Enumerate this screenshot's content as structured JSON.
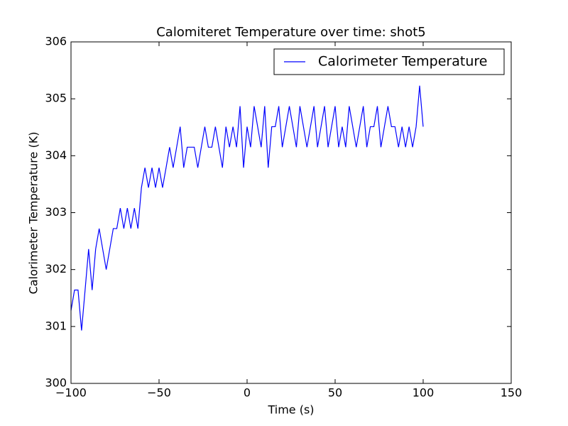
{
  "chart_data": {
    "type": "line",
    "title": "Calomiteret Temperature over time: shot5",
    "xlabel": "Time (s)",
    "ylabel": "Calorimeter Temperature (K)",
    "x": [
      -100,
      -98,
      -96,
      -94,
      -92,
      -90,
      -88,
      -86,
      -84,
      -82,
      -80,
      -78,
      -76,
      -74,
      -72,
      -70,
      -68,
      -66,
      -64,
      -62,
      -60,
      -58,
      -56,
      -54,
      -52,
      -50,
      -48,
      -46,
      -44,
      -42,
      -40,
      -38,
      -36,
      -34,
      -32,
      -30,
      -28,
      -26,
      -24,
      -22,
      -20,
      -18,
      -16,
      -14,
      -12,
      -10,
      -8,
      -6,
      -4,
      -2,
      0,
      2,
      4,
      6,
      8,
      10,
      12,
      14,
      16,
      18,
      20,
      22,
      24,
      26,
      28,
      30,
      32,
      34,
      36,
      38,
      40,
      42,
      44,
      46,
      48,
      50,
      52,
      54,
      56,
      58,
      60,
      62,
      64,
      66,
      68,
      70,
      72,
      74,
      76,
      78,
      80,
      82,
      84,
      86,
      88,
      90,
      92,
      94,
      96,
      98,
      100
    ],
    "series": [
      {
        "name": "Calorimeter Temperature",
        "color": "#0000ff",
        "values": [
          301.28,
          301.64,
          301.64,
          300.93,
          301.64,
          302.36,
          301.64,
          302.36,
          302.72,
          302.36,
          302.0,
          302.36,
          302.72,
          302.72,
          303.08,
          302.72,
          303.08,
          302.72,
          303.08,
          302.72,
          303.44,
          303.79,
          303.44,
          303.79,
          303.44,
          303.79,
          303.44,
          303.79,
          304.15,
          303.79,
          304.15,
          304.51,
          303.79,
          304.15,
          304.15,
          304.15,
          303.79,
          304.15,
          304.51,
          304.15,
          304.15,
          304.51,
          304.15,
          303.79,
          304.51,
          304.15,
          304.51,
          304.15,
          304.87,
          303.79,
          304.51,
          304.15,
          304.87,
          304.51,
          304.15,
          304.87,
          303.79,
          304.51,
          304.51,
          304.87,
          304.15,
          304.51,
          304.87,
          304.51,
          304.15,
          304.87,
          304.51,
          304.15,
          304.51,
          304.87,
          304.15,
          304.51,
          304.87,
          304.15,
          304.51,
          304.87,
          304.15,
          304.51,
          304.15,
          304.87,
          304.51,
          304.15,
          304.51,
          304.87,
          304.15,
          304.51,
          304.51,
          304.87,
          304.15,
          304.51,
          304.87,
          304.51,
          304.51,
          304.15,
          304.51,
          304.15,
          304.51,
          304.15,
          304.51,
          305.23,
          304.51
        ]
      }
    ],
    "xlim": [
      -100,
      150
    ],
    "xticks": [
      {
        "value": -100,
        "label": "−100"
      },
      {
        "value": -50,
        "label": "−50"
      },
      0,
      50,
      100,
      150
    ],
    "ylim": [
      300,
      306
    ],
    "yticks": [
      300,
      301,
      302,
      303,
      304,
      305,
      306
    ],
    "legend": "upper right"
  }
}
